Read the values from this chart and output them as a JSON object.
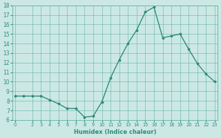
{
  "x": [
    0,
    1,
    2,
    3,
    4,
    5,
    6,
    7,
    8,
    9,
    10,
    11,
    12,
    13,
    14,
    15,
    16,
    17,
    18,
    19,
    20,
    21,
    22,
    23
  ],
  "y": [
    8.5,
    8.5,
    8.5,
    8.5,
    8.1,
    7.7,
    7.2,
    7.2,
    6.3,
    6.4,
    7.9,
    10.4,
    12.3,
    14.0,
    15.4,
    17.3,
    17.8,
    14.6,
    14.8,
    15.0,
    13.4,
    11.9,
    10.8,
    10.0
  ],
  "xlabel": "Humidex (Indice chaleur)",
  "xlim": [
    -0.3,
    23.3
  ],
  "ylim": [
    6,
    18
  ],
  "yticks": [
    6,
    7,
    8,
    9,
    10,
    11,
    12,
    13,
    14,
    15,
    16,
    17,
    18
  ],
  "xticks": [
    0,
    2,
    3,
    4,
    5,
    6,
    7,
    8,
    9,
    10,
    11,
    12,
    13,
    14,
    15,
    16,
    17,
    18,
    19,
    20,
    21,
    22,
    23
  ],
  "xtick_labels": [
    "0",
    "2",
    "3",
    "4",
    "5",
    "6",
    "7",
    "8",
    "9",
    "10",
    "11",
    "12",
    "13",
    "14",
    "15",
    "16",
    "17",
    "18",
    "19",
    "20",
    "21",
    "22",
    "23"
  ],
  "line_color": "#2e8b78",
  "bg_color": "#cce8e4",
  "grid_color": "#6ab8ad"
}
